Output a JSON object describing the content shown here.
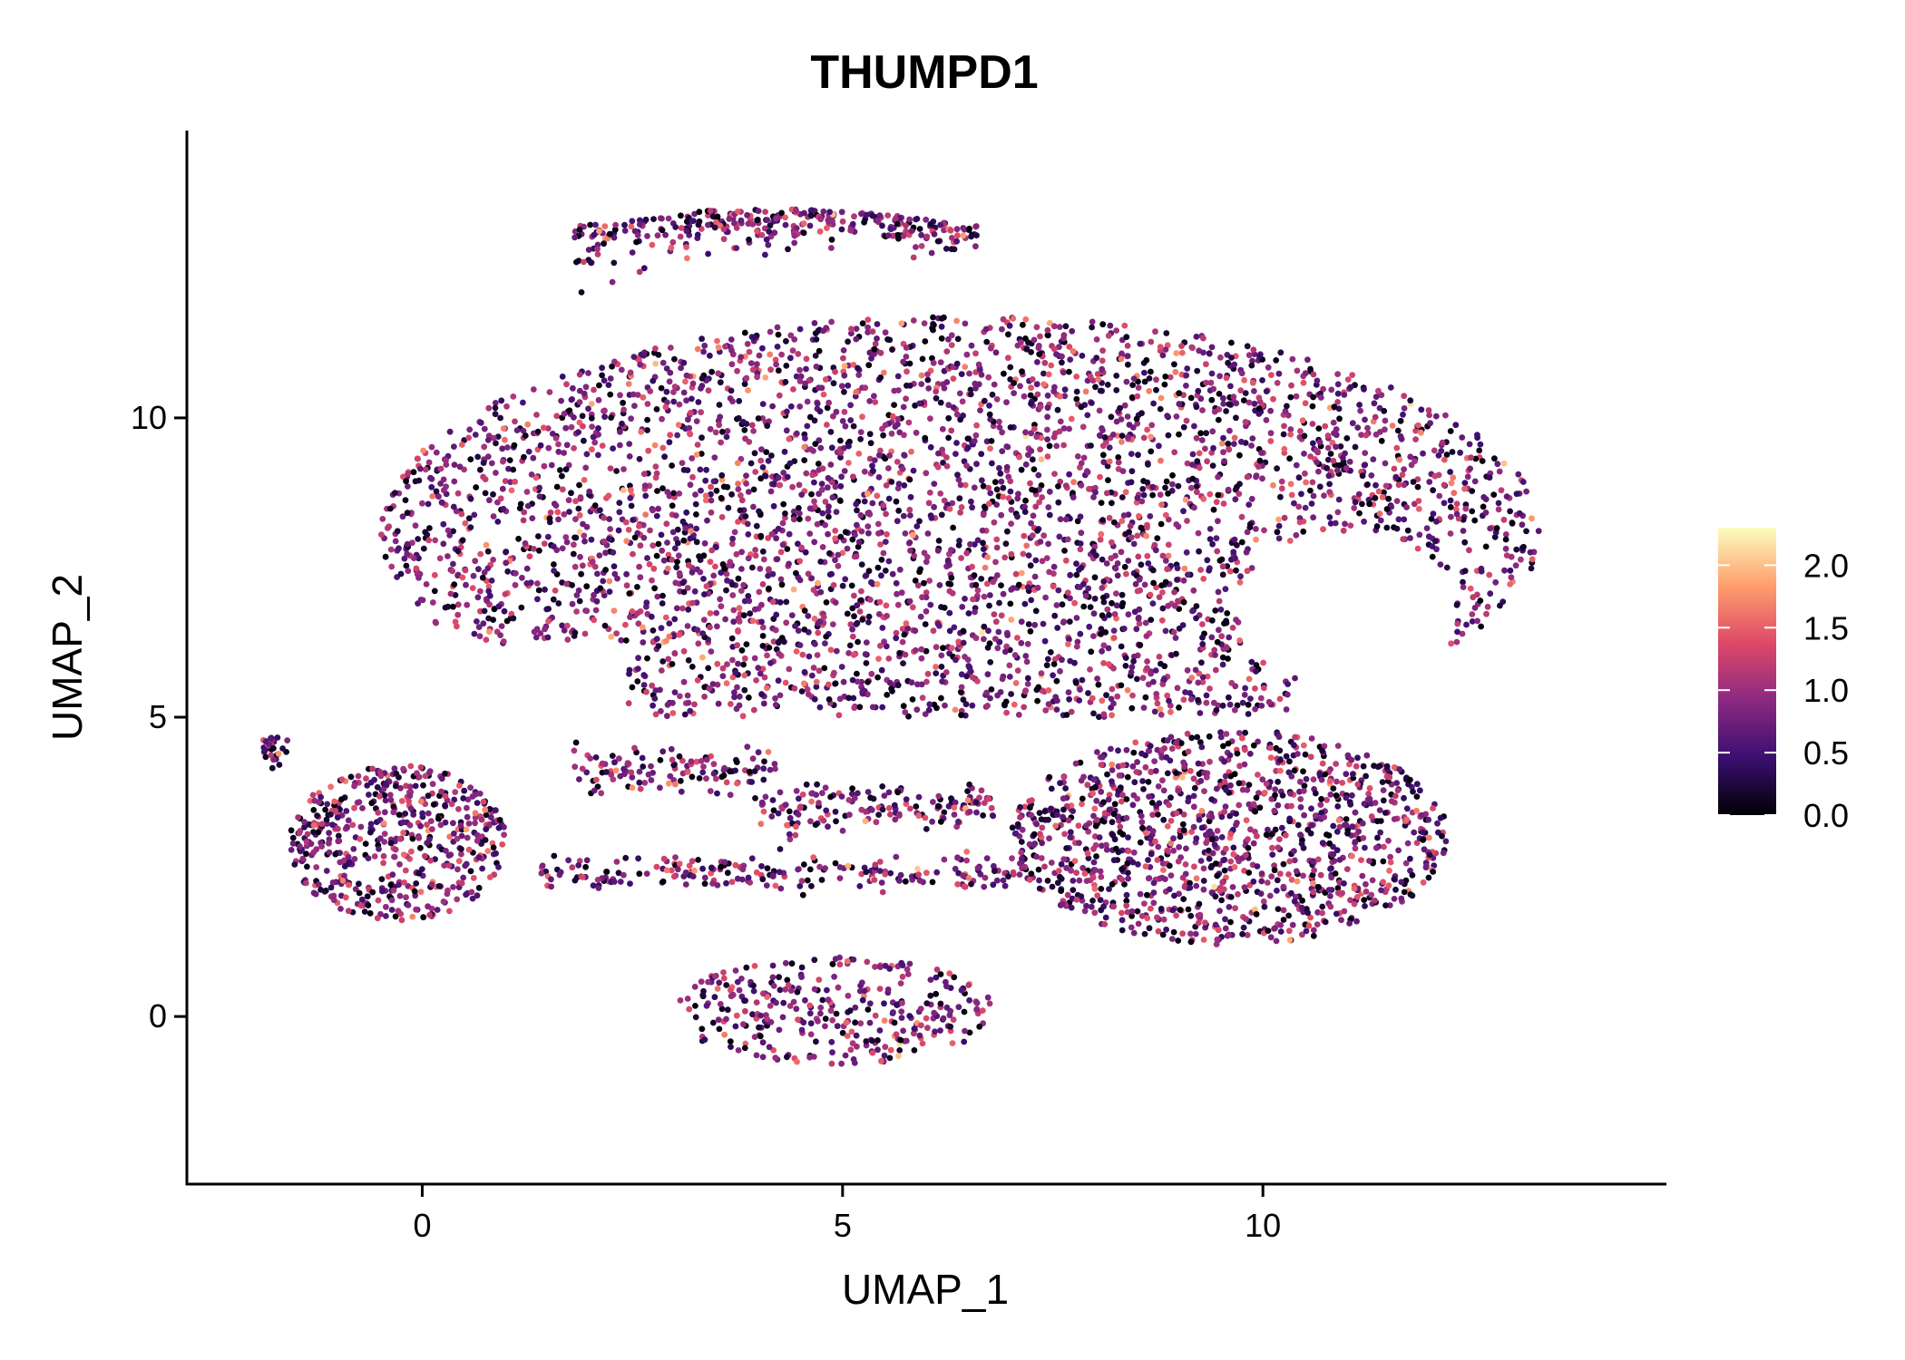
{
  "chart_data": {
    "type": "scatter",
    "title": "THUMPD1",
    "xlabel": "UMAP_1",
    "ylabel": "UMAP_2",
    "xlim": [
      -2.8,
      14.8
    ],
    "ylim": [
      -2.8,
      14.8
    ],
    "xticks": [
      0,
      5,
      10
    ],
    "xtick_labels": [
      "0",
      "5",
      "10"
    ],
    "yticks": [
      0,
      5,
      10
    ],
    "ytick_labels": [
      "0",
      "5",
      "10"
    ],
    "grid": false,
    "legend": {
      "type": "colorbar",
      "placement": "right",
      "range": [
        0.0,
        2.3
      ],
      "ticks": [
        0.0,
        0.5,
        1.0,
        1.5,
        2.0
      ],
      "tick_labels": [
        "0.0",
        "0.5",
        "1.0",
        "1.5",
        "2.0"
      ],
      "palette": [
        "#000004",
        "#3b0f70",
        "#8c2981",
        "#de4968",
        "#fe9f6d",
        "#fcfdbf"
      ]
    },
    "value_range": [
      0.0,
      2.3
    ],
    "clusters": [
      {
        "name": "main",
        "shape": "ellipse",
        "cx": 6.4,
        "cy": 8.1,
        "rx": 6.9,
        "ry": 3.6,
        "n": 3800,
        "hole": {
          "cx": 11.0,
          "cy": 6.8,
          "rx": 1.3,
          "ry": 1.3
        }
      },
      {
        "name": "top-arc",
        "shape": "arc",
        "x0": 1.8,
        "x1": 6.6,
        "ymid": 13.2,
        "ylow": 12.3,
        "n": 330
      },
      {
        "name": "lower-right",
        "shape": "ellipse",
        "cx": 9.6,
        "cy": 3.0,
        "rx": 2.6,
        "ry": 1.8,
        "n": 1200
      },
      {
        "name": "left",
        "shape": "ellipse",
        "cx": -0.3,
        "cy": 2.9,
        "rx": 1.3,
        "ry": 1.3,
        "n": 520
      },
      {
        "name": "band-low",
        "shape": "band",
        "x0": 1.4,
        "x1": 7.3,
        "y": 2.4,
        "sd": 0.15,
        "n": 220
      },
      {
        "name": "band-mid",
        "shape": "band",
        "x0": 4.0,
        "x1": 6.8,
        "y": 3.5,
        "sd": 0.2,
        "n": 160
      },
      {
        "name": "band-high",
        "shape": "band",
        "x0": 1.8,
        "x1": 4.2,
        "y": 4.1,
        "sd": 0.2,
        "n": 120
      },
      {
        "name": "bottom",
        "shape": "ellipse",
        "cx": 4.9,
        "cy": 0.1,
        "rx": 1.9,
        "ry": 0.9,
        "n": 330
      },
      {
        "name": "left-tip",
        "shape": "band",
        "x0": -1.9,
        "x1": -1.6,
        "y": 4.5,
        "sd": 0.15,
        "n": 30
      }
    ]
  }
}
